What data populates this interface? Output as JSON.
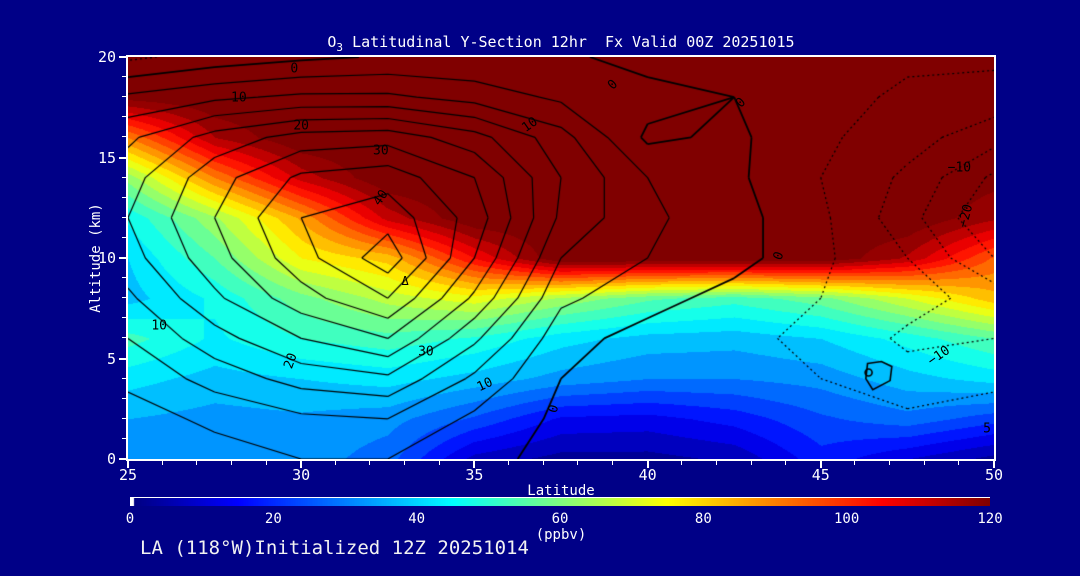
{
  "title": {
    "base": "O",
    "subscript": "3",
    "rest": " Latitudinal Y-Section 12hr  Fx Valid 00Z 20251015"
  },
  "footer": "LA (118°W)Initialized 12Z 20251014",
  "axes": {
    "x_label": "Latitude",
    "y_label": "Altitude (km)",
    "x_range": [
      25,
      50
    ],
    "y_range": [
      0,
      20
    ],
    "x_major_ticks": [
      25,
      30,
      35,
      40,
      45,
      50
    ],
    "x_minor_step": 1,
    "y_major_ticks": [
      0,
      5,
      10,
      15,
      20
    ],
    "y_minor_step": 1
  },
  "colorbar": {
    "min": 0,
    "max": 120,
    "ticks": [
      0,
      20,
      40,
      60,
      80,
      100,
      120
    ],
    "unit": "(ppbv)",
    "palette": "jet"
  },
  "colors": {
    "background": "#000087",
    "frame": "#ffffff",
    "contour_line": "#000000",
    "text": "#ffffff",
    "max_fill": "#8b0000"
  },
  "chart_data": {
    "type": "heatmap",
    "title": "O3 Latitudinal Y-Section 12hr Fx Valid 00Z 20251015",
    "xlabel": "Latitude",
    "ylabel": "Altitude (km)",
    "xlim": [
      25,
      50
    ],
    "ylim": [
      0,
      20
    ],
    "grid": false,
    "x": [
      25,
      27.5,
      30,
      32.5,
      35,
      37.5,
      40,
      42.5,
      45,
      47.5,
      50
    ],
    "y": [
      20,
      18,
      16,
      14,
      12,
      10,
      8,
      6,
      4,
      2,
      0
    ],
    "fill_units": "ppbv",
    "fill_band_interval": 5,
    "fill_values_ppbv": [
      [
        125,
        125,
        125,
        125,
        125,
        125,
        125,
        125,
        125,
        125,
        125
      ],
      [
        122,
        125,
        125,
        125,
        125,
        125,
        125,
        125,
        125,
        125,
        125
      ],
      [
        90,
        115,
        125,
        125,
        125,
        125,
        125,
        125,
        125,
        125,
        125
      ],
      [
        62,
        90,
        112,
        125,
        125,
        125,
        125,
        125,
        125,
        125,
        122
      ],
      [
        46,
        64,
        86,
        112,
        125,
        125,
        125,
        125,
        125,
        125,
        116
      ],
      [
        40,
        55,
        75,
        82,
        105,
        125,
        125,
        125,
        125,
        114,
        94
      ],
      [
        38,
        46,
        58,
        67,
        73,
        64,
        56,
        52,
        58,
        70,
        83
      ],
      [
        52,
        44,
        50,
        53,
        49,
        42,
        38,
        37,
        40,
        47,
        55
      ],
      [
        42,
        38,
        40,
        42,
        38,
        33,
        30,
        30,
        32,
        38,
        42
      ],
      [
        35,
        33,
        34,
        32,
        24,
        14,
        13,
        17,
        24,
        28,
        22
      ],
      [
        33,
        32,
        33,
        27,
        8,
        3,
        3,
        6,
        18,
        10,
        3
      ]
    ],
    "line_field_values": [
      [
        -6,
        -3,
        -1,
        0.5,
        0.5,
        1,
        -2,
        -1,
        -3,
        -4,
        -4
      ],
      [
        6,
        9,
        11,
        11,
        8,
        4,
        2,
        0,
        -3,
        -6,
        -7
      ],
      [
        14,
        22,
        27,
        28,
        22,
        12,
        -1,
        1,
        -4,
        -8,
        -13
      ],
      [
        18,
        28,
        36,
        38,
        30,
        15,
        5,
        1,
        -5,
        -11,
        -21
      ],
      [
        20,
        30,
        40,
        43,
        33,
        14,
        6,
        2,
        -4,
        -13,
        -25
      ],
      [
        18,
        28,
        38,
        48,
        30,
        10,
        5,
        2,
        -4,
        -10,
        -20
      ],
      [
        14,
        24,
        33,
        40,
        24,
        6,
        2,
        -2,
        -5,
        -8,
        -12
      ],
      [
        10,
        18,
        25,
        30,
        16,
        2,
        -2,
        -4,
        -6,
        -11,
        -10
      ],
      [
        6,
        12,
        17,
        19,
        9,
        0,
        -3,
        -4,
        -5,
        -8,
        -6
      ],
      [
        3,
        6,
        9,
        10,
        4,
        -1,
        -3,
        -3,
        -3,
        -4,
        -3
      ],
      [
        1,
        3,
        5,
        5,
        1,
        -1,
        -2,
        -2,
        -2,
        -2,
        -2
      ]
    ],
    "contour_levels": {
      "min": -25,
      "max": 45,
      "interval": 5,
      "negative_style": "dotted",
      "positive_style": "solid"
    },
    "contour_labels": [
      {
        "text": "0",
        "lat": 29.8,
        "alt": 19.4,
        "rot": 0
      },
      {
        "text": "10",
        "lat": 28.2,
        "alt": 17.95,
        "rot": 0
      },
      {
        "text": "20",
        "lat": 30.0,
        "alt": 16.55,
        "rot": 0
      },
      {
        "text": "30",
        "lat": 32.3,
        "alt": 15.3,
        "rot": 0
      },
      {
        "text": "10",
        "lat": 36.6,
        "alt": 16.6,
        "rot": -35
      },
      {
        "text": "40",
        "lat": 32.3,
        "alt": 13.0,
        "rot": -55
      },
      {
        "text": "30",
        "lat": 33.6,
        "alt": 5.3,
        "rot": 0
      },
      {
        "text": "20",
        "lat": 29.7,
        "alt": 4.9,
        "rot": -70
      },
      {
        "text": "10",
        "lat": 25.9,
        "alt": 6.6,
        "rot": 0
      },
      {
        "text": "10",
        "lat": 35.3,
        "alt": 3.7,
        "rot": -25
      },
      {
        "text": "0",
        "lat": 37.3,
        "alt": 2.5,
        "rot": -75
      },
      {
        "text": "0",
        "lat": 39.0,
        "alt": 18.6,
        "rot": -45
      },
      {
        "text": "0",
        "lat": 42.7,
        "alt": 17.7,
        "rot": -45
      },
      {
        "text": "0",
        "lat": 43.8,
        "alt": 10.1,
        "rot": -70
      },
      {
        "text": "−10",
        "lat": 49.0,
        "alt": 14.5,
        "rot": 0
      },
      {
        "text": "−20",
        "lat": 49.2,
        "alt": 12.1,
        "rot": -75
      },
      {
        "text": "−10",
        "lat": 48.4,
        "alt": 5.1,
        "rot": -35
      },
      {
        "text": "5",
        "lat": 49.8,
        "alt": 1.5,
        "rot": 0
      }
    ],
    "max_marker": {
      "symbol": "Δ",
      "lat": 33.0,
      "alt": 8.85
    },
    "small_island": {
      "points": [
        [
          46.35,
          4.75
        ],
        [
          46.75,
          4.85
        ],
        [
          47.05,
          4.6
        ],
        [
          47.0,
          3.9
        ],
        [
          46.5,
          3.45
        ],
        [
          46.3,
          4.0
        ]
      ],
      "circle": [
        46.38,
        4.3
      ]
    }
  }
}
